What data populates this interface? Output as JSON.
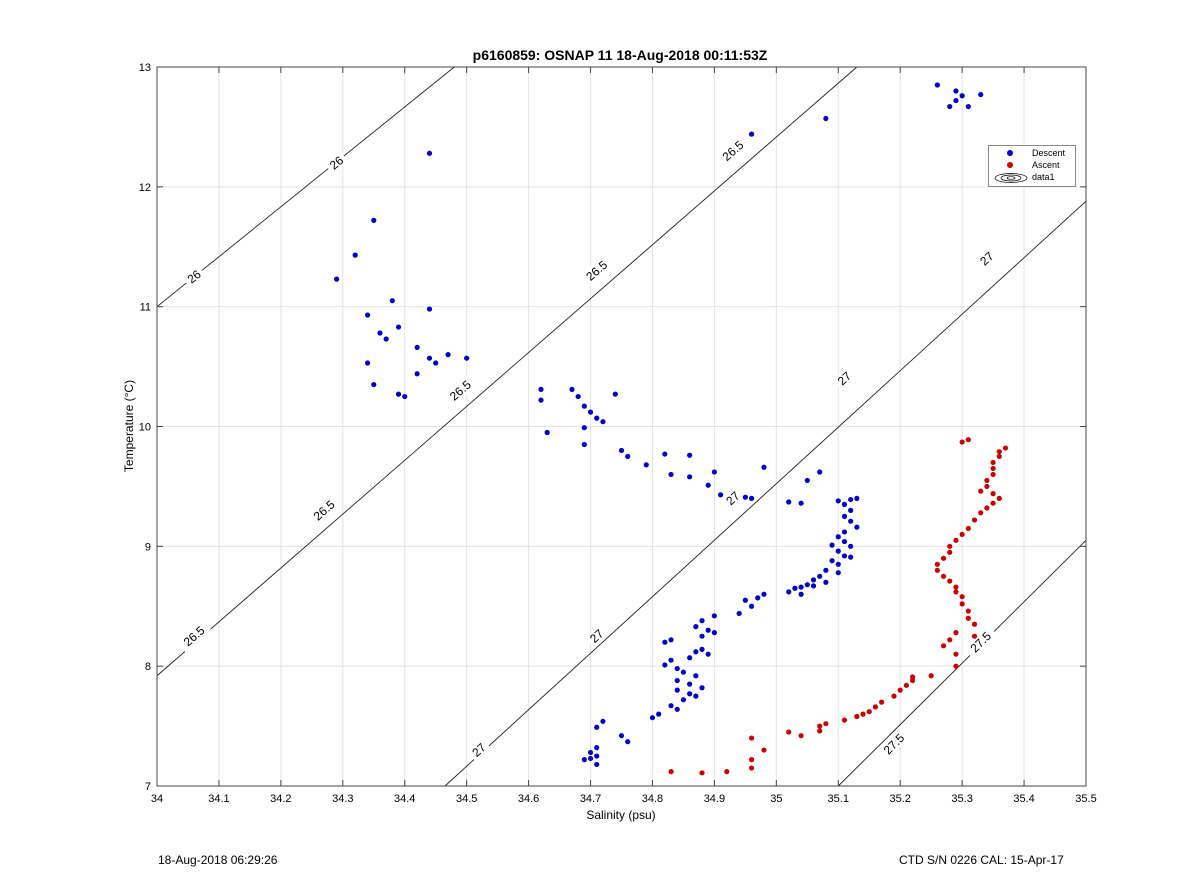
{
  "title": "p6160859: OSNAP 11 18-Aug-2018 00:11:53Z",
  "footer": {
    "left": "18-Aug-2018 06:29:26",
    "right": "CTD S/N 0226  CAL: 15-Apr-17"
  },
  "colors": {
    "descent": "#0000cc",
    "ascent": "#cc0000"
  },
  "chart_data": {
    "type": "scatter",
    "title": "p6160859: OSNAP 11 18-Aug-2018 00:11:53Z",
    "xlabel": "Salinity (psu)",
    "ylabel": "Temperature (°C)",
    "xlim": [
      34,
      35.5
    ],
    "ylim": [
      7,
      13
    ],
    "xticks": [
      34,
      34.1,
      34.2,
      34.3,
      34.4,
      34.5,
      34.6,
      34.7,
      34.8,
      34.9,
      35,
      35.1,
      35.2,
      35.3,
      35.4,
      35.5
    ],
    "xtick_labels": [
      "34",
      "34.1",
      "34.2",
      "34.3",
      "34.4",
      "34.5",
      "34.6",
      "34.7",
      "34.8",
      "34.9",
      "35",
      "35.1",
      "35.2",
      "35.3",
      "35.4",
      "35.5"
    ],
    "yticks": [
      7,
      8,
      9,
      10,
      11,
      12,
      13
    ],
    "ytick_labels": [
      "7",
      "8",
      "9",
      "10",
      "11",
      "12",
      "13"
    ],
    "grid": true,
    "legend": {
      "position": "top-right",
      "entries": [
        "Descent",
        "Ascent",
        "data1"
      ]
    },
    "contours": [
      {
        "level": "26",
        "points": [
          [
            34.0,
            11.0
          ],
          [
            34.48,
            13.0
          ]
        ],
        "labels": [
          [
            34.06,
            11.25
          ],
          [
            34.29,
            12.2
          ]
        ]
      },
      {
        "level": "26.5",
        "points": [
          [
            34.0,
            7.92
          ],
          [
            35.13,
            13.0
          ]
        ],
        "labels": [
          [
            34.06,
            8.25
          ],
          [
            34.27,
            9.3
          ],
          [
            34.49,
            10.3
          ],
          [
            34.71,
            11.3
          ],
          [
            34.93,
            12.3
          ]
        ]
      },
      {
        "level": "27",
        "points": [
          [
            34.465,
            7.0
          ],
          [
            35.5,
            11.88
          ]
        ],
        "labels": [
          [
            34.52,
            7.3
          ],
          [
            34.71,
            8.25
          ],
          [
            34.93,
            9.4
          ],
          [
            35.11,
            10.4
          ],
          [
            35.34,
            11.4
          ]
        ]
      },
      {
        "level": "27.5",
        "points": [
          [
            35.1,
            7.0
          ],
          [
            35.5,
            9.05
          ]
        ],
        "labels": [
          [
            35.19,
            7.35
          ],
          [
            35.33,
            8.2
          ]
        ]
      }
    ],
    "series": [
      {
        "name": "Descent",
        "color": "#0000cc",
        "points": [
          [
            34.44,
            12.28
          ],
          [
            34.35,
            11.72
          ],
          [
            34.32,
            11.43
          ],
          [
            34.29,
            11.23
          ],
          [
            34.38,
            11.05
          ],
          [
            34.44,
            10.98
          ],
          [
            34.34,
            10.93
          ],
          [
            34.39,
            10.83
          ],
          [
            34.36,
            10.78
          ],
          [
            34.37,
            10.73
          ],
          [
            34.42,
            10.66
          ],
          [
            34.47,
            10.6
          ],
          [
            34.5,
            10.57
          ],
          [
            34.44,
            10.57
          ],
          [
            34.45,
            10.53
          ],
          [
            34.34,
            10.53
          ],
          [
            34.42,
            10.44
          ],
          [
            34.35,
            10.35
          ],
          [
            34.39,
            10.27
          ],
          [
            34.4,
            10.25
          ],
          [
            34.62,
            10.31
          ],
          [
            34.67,
            10.31
          ],
          [
            34.74,
            10.27
          ],
          [
            34.68,
            10.25
          ],
          [
            34.62,
            10.22
          ],
          [
            34.69,
            10.17
          ],
          [
            34.7,
            10.12
          ],
          [
            34.71,
            10.07
          ],
          [
            34.72,
            10.04
          ],
          [
            34.69,
            9.99
          ],
          [
            34.63,
            9.95
          ],
          [
            34.69,
            9.85
          ],
          [
            34.75,
            9.8
          ],
          [
            34.76,
            9.75
          ],
          [
            34.82,
            9.77
          ],
          [
            34.86,
            9.76
          ],
          [
            34.79,
            9.68
          ],
          [
            34.98,
            9.66
          ],
          [
            34.9,
            9.62
          ],
          [
            34.83,
            9.6
          ],
          [
            34.86,
            9.58
          ],
          [
            35.07,
            9.62
          ],
          [
            35.05,
            9.55
          ],
          [
            34.89,
            9.51
          ],
          [
            34.91,
            9.43
          ],
          [
            34.95,
            9.41
          ],
          [
            34.96,
            9.4
          ],
          [
            35.02,
            9.37
          ],
          [
            35.04,
            9.36
          ],
          [
            35.1,
            9.38
          ],
          [
            35.11,
            9.35
          ],
          [
            35.12,
            9.39
          ],
          [
            35.13,
            9.4
          ],
          [
            35.12,
            9.3
          ],
          [
            35.11,
            9.25
          ],
          [
            35.12,
            9.21
          ],
          [
            35.13,
            9.16
          ],
          [
            35.11,
            9.12
          ],
          [
            35.1,
            9.08
          ],
          [
            35.11,
            9.04
          ],
          [
            35.09,
            9.01
          ],
          [
            35.12,
            9.0
          ],
          [
            35.1,
            8.96
          ],
          [
            35.11,
            8.92
          ],
          [
            35.12,
            8.91
          ],
          [
            35.09,
            8.88
          ],
          [
            35.1,
            8.85
          ],
          [
            35.08,
            8.8
          ],
          [
            35.1,
            8.78
          ],
          [
            35.07,
            8.75
          ],
          [
            35.06,
            8.72
          ],
          [
            35.08,
            8.7
          ],
          [
            35.05,
            8.68
          ],
          [
            35.06,
            8.67
          ],
          [
            35.04,
            8.66
          ],
          [
            35.03,
            8.65
          ],
          [
            35.02,
            8.62
          ],
          [
            35.04,
            8.6
          ],
          [
            34.98,
            8.6
          ],
          [
            34.97,
            8.57
          ],
          [
            34.95,
            8.55
          ],
          [
            34.96,
            8.5
          ],
          [
            34.94,
            8.44
          ],
          [
            34.9,
            8.42
          ],
          [
            34.88,
            8.38
          ],
          [
            34.87,
            8.33
          ],
          [
            34.89,
            8.3
          ],
          [
            34.9,
            8.28
          ],
          [
            34.88,
            8.25
          ],
          [
            34.83,
            8.22
          ],
          [
            34.82,
            8.2
          ],
          [
            34.88,
            8.14
          ],
          [
            34.87,
            8.12
          ],
          [
            34.89,
            8.1
          ],
          [
            34.86,
            8.07
          ],
          [
            34.83,
            8.05
          ],
          [
            34.82,
            8.01
          ],
          [
            34.84,
            7.98
          ],
          [
            34.85,
            7.95
          ],
          [
            34.87,
            7.92
          ],
          [
            34.84,
            7.88
          ],
          [
            34.86,
            7.85
          ],
          [
            34.88,
            7.82
          ],
          [
            34.84,
            7.8
          ],
          [
            34.86,
            7.77
          ],
          [
            34.87,
            7.75
          ],
          [
            34.85,
            7.72
          ],
          [
            34.83,
            7.67
          ],
          [
            34.84,
            7.64
          ],
          [
            34.81,
            7.6
          ],
          [
            34.8,
            7.57
          ],
          [
            34.72,
            7.54
          ],
          [
            34.71,
            7.49
          ],
          [
            34.75,
            7.42
          ],
          [
            34.76,
            7.37
          ],
          [
            34.71,
            7.32
          ],
          [
            34.7,
            7.28
          ],
          [
            34.71,
            7.25
          ],
          [
            34.7,
            7.23
          ],
          [
            34.69,
            7.22
          ],
          [
            34.71,
            7.18
          ],
          [
            34.96,
            12.44
          ],
          [
            35.08,
            12.57
          ],
          [
            35.26,
            12.85
          ],
          [
            35.29,
            12.8
          ],
          [
            35.3,
            12.76
          ],
          [
            35.33,
            12.77
          ],
          [
            35.28,
            12.67
          ],
          [
            35.29,
            12.72
          ],
          [
            35.31,
            12.67
          ]
        ]
      },
      {
        "name": "Ascent",
        "color": "#cc0000",
        "points": [
          [
            35.31,
            9.89
          ],
          [
            35.3,
            9.87
          ],
          [
            35.37,
            9.82
          ],
          [
            35.36,
            9.79
          ],
          [
            35.36,
            9.75
          ],
          [
            35.35,
            9.7
          ],
          [
            35.35,
            9.65
          ],
          [
            35.35,
            9.6
          ],
          [
            35.34,
            9.55
          ],
          [
            35.34,
            9.5
          ],
          [
            35.33,
            9.46
          ],
          [
            35.35,
            9.44
          ],
          [
            35.36,
            9.4
          ],
          [
            35.35,
            9.36
          ],
          [
            35.34,
            9.32
          ],
          [
            35.33,
            9.28
          ],
          [
            35.32,
            9.22
          ],
          [
            35.31,
            9.15
          ],
          [
            35.3,
            9.1
          ],
          [
            35.29,
            9.05
          ],
          [
            35.28,
            9.0
          ],
          [
            35.28,
            8.95
          ],
          [
            35.27,
            8.9
          ],
          [
            35.26,
            8.85
          ],
          [
            35.26,
            8.8
          ],
          [
            35.27,
            8.75
          ],
          [
            35.28,
            8.71
          ],
          [
            35.29,
            8.66
          ],
          [
            35.29,
            8.62
          ],
          [
            35.3,
            8.58
          ],
          [
            35.3,
            8.52
          ],
          [
            35.31,
            8.46
          ],
          [
            35.31,
            8.4
          ],
          [
            35.32,
            8.35
          ],
          [
            35.29,
            8.28
          ],
          [
            35.32,
            8.25
          ],
          [
            35.28,
            8.22
          ],
          [
            35.27,
            8.17
          ],
          [
            35.29,
            8.1
          ],
          [
            35.29,
            8.0
          ],
          [
            35.25,
            7.92
          ],
          [
            35.22,
            7.91
          ],
          [
            35.22,
            7.88
          ],
          [
            35.21,
            7.84
          ],
          [
            35.2,
            7.8
          ],
          [
            35.19,
            7.75
          ],
          [
            35.17,
            7.7
          ],
          [
            35.16,
            7.66
          ],
          [
            35.15,
            7.62
          ],
          [
            35.14,
            7.6
          ],
          [
            35.13,
            7.58
          ],
          [
            35.11,
            7.55
          ],
          [
            35.08,
            7.52
          ],
          [
            35.07,
            7.5
          ],
          [
            35.07,
            7.46
          ],
          [
            35.04,
            7.42
          ],
          [
            35.02,
            7.45
          ],
          [
            34.98,
            7.3
          ],
          [
            34.96,
            7.22
          ],
          [
            34.96,
            7.15
          ],
          [
            34.96,
            7.4
          ],
          [
            34.92,
            7.12
          ],
          [
            34.88,
            7.11
          ],
          [
            34.83,
            7.12
          ]
        ]
      }
    ]
  }
}
